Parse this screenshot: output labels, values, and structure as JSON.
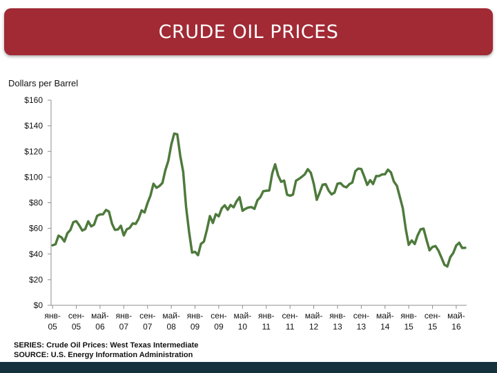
{
  "header": {
    "title": "CRUDE OIL PRICES"
  },
  "notes": {
    "series": "SERIES: Crude Oil Prices: West Texas Intermediate",
    "source": "SOURCE: U.S. Energy Information Administration"
  },
  "colors": {
    "banner": "#a12a35",
    "line": "#4e7a3c",
    "footer": "#14313d"
  },
  "chart_data": {
    "type": "line",
    "title": "CRUDE OIL PRICES",
    "ylabel": "Dollars per Barrel",
    "xlabel": "",
    "ylim": [
      0,
      160
    ],
    "yticks": [
      0,
      20,
      40,
      60,
      80,
      100,
      120,
      140,
      160
    ],
    "ytick_labels": [
      "$0",
      "$20",
      "$40",
      "$60",
      "$80",
      "$100",
      "$120",
      "$140",
      "$160"
    ],
    "x_ticks": [
      {
        "top": "янв-",
        "bottom": "05",
        "month": 0
      },
      {
        "top": "сен-",
        "bottom": "05",
        "month": 8
      },
      {
        "top": "май-",
        "bottom": "06",
        "month": 16
      },
      {
        "top": "янв-",
        "bottom": "07",
        "month": 24
      },
      {
        "top": "сен-",
        "bottom": "07",
        "month": 32
      },
      {
        "top": "май-",
        "bottom": "08",
        "month": 40
      },
      {
        "top": "янв-",
        "bottom": "09",
        "month": 48
      },
      {
        "top": "сен-",
        "bottom": "09",
        "month": 56
      },
      {
        "top": "май-",
        "bottom": "10",
        "month": 64
      },
      {
        "top": "янв-",
        "bottom": "11",
        "month": 72
      },
      {
        "top": "сен-",
        "bottom": "11",
        "month": 80
      },
      {
        "top": "май-",
        "bottom": "12",
        "month": 88
      },
      {
        "top": "янв-",
        "bottom": "13",
        "month": 96
      },
      {
        "top": "сен-",
        "bottom": "13",
        "month": 104
      },
      {
        "top": "май-",
        "bottom": "14",
        "month": 112
      },
      {
        "top": "янв-",
        "bottom": "15",
        "month": 120
      },
      {
        "top": "сен-",
        "bottom": "15",
        "month": 128
      },
      {
        "top": "май-",
        "bottom": "16",
        "month": 136
      }
    ],
    "grid": false,
    "series": [
      {
        "name": "",
        "values": [
          46.8,
          47.7,
          54.3,
          53.0,
          49.8,
          56.3,
          58.8,
          64.9,
          65.6,
          62.4,
          58.3,
          59.5,
          65.5,
          61.6,
          62.9,
          69.7,
          70.9,
          71.0,
          74.4,
          73.1,
          63.8,
          58.9,
          59.1,
          62.0,
          54.5,
          59.3,
          60.4,
          63.9,
          63.5,
          67.5,
          74.1,
          72.4,
          79.9,
          85.8,
          94.8,
          91.7,
          93.0,
          95.4,
          105.5,
          112.6,
          125.4,
          133.9,
          133.4,
          116.7,
          104.1,
          76.6,
          57.3,
          41.1,
          41.7,
          39.1,
          47.9,
          49.7,
          59.0,
          69.6,
          64.2,
          71.1,
          69.4,
          75.7,
          78.0,
          74.5,
          78.3,
          76.4,
          81.2,
          84.3,
          73.7,
          75.3,
          76.3,
          76.6,
          75.2,
          81.9,
          84.3,
          89.0,
          89.4,
          89.6,
          102.9,
          110.0,
          101.3,
          96.3,
          97.3,
          86.3,
          85.5,
          86.3,
          97.2,
          98.6,
          100.3,
          102.2,
          106.2,
          103.3,
          94.7,
          82.3,
          87.9,
          94.1,
          94.5,
          89.5,
          86.5,
          87.9,
          94.8,
          95.3,
          92.9,
          92.0,
          94.5,
          95.8,
          104.6,
          106.6,
          106.3,
          100.5,
          93.9,
          97.6,
          94.6,
          100.8,
          100.8,
          102.1,
          102.2,
          105.8,
          103.6,
          96.5,
          93.2,
          84.4,
          75.8,
          59.3,
          47.2,
          50.6,
          47.8,
          54.5,
          59.3,
          59.8,
          50.9,
          42.9,
          45.5,
          46.2,
          42.7,
          37.3,
          31.7,
          30.3,
          37.6,
          40.8,
          46.7,
          48.8,
          44.7,
          44.8
        ]
      }
    ]
  }
}
